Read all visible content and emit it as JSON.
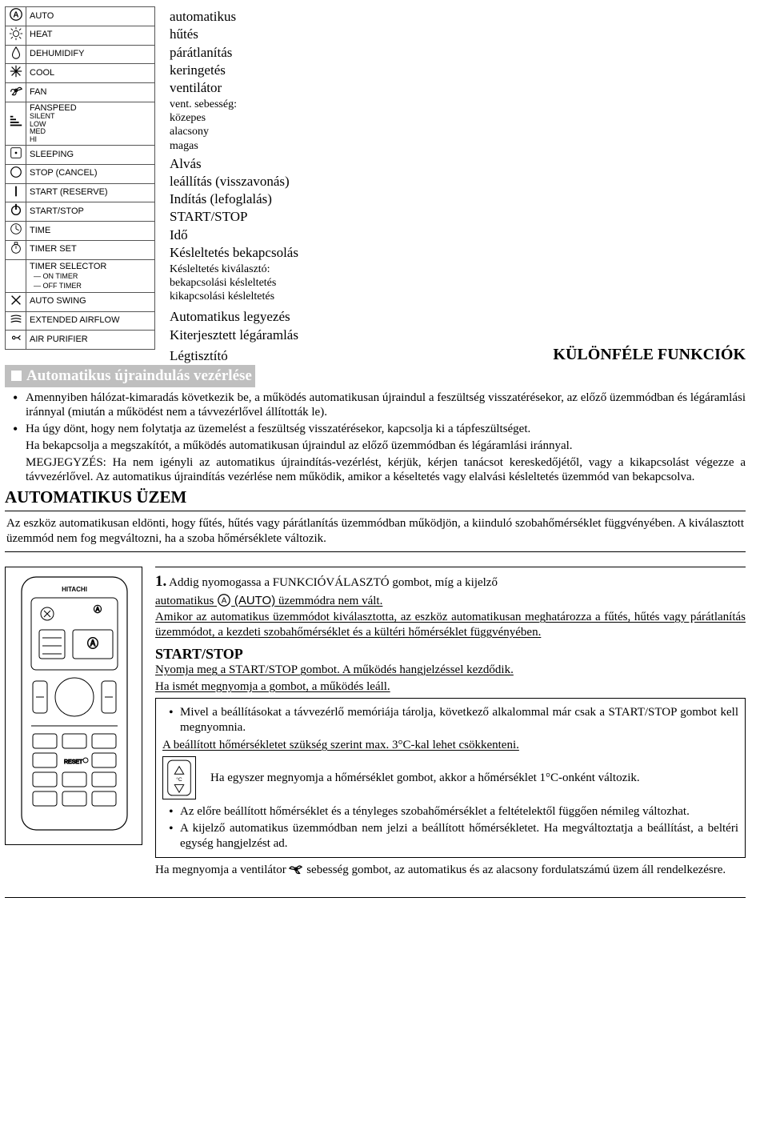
{
  "icon_table": {
    "rows": [
      {
        "label": "AUTO"
      },
      {
        "label": "HEAT"
      },
      {
        "label": "DEHUMIDIFY"
      },
      {
        "label": "COOL"
      },
      {
        "label": "FAN"
      },
      {
        "label": "FANSPEED",
        "subs": [
          "SILENT",
          "LOW",
          "MED",
          "HI"
        ]
      },
      {
        "label": "SLEEPING"
      },
      {
        "label": "STOP (CANCEL)"
      },
      {
        "label": "START (RESERVE)"
      },
      {
        "label": "START/STOP"
      },
      {
        "label": "TIME"
      },
      {
        "label": "TIMER SET"
      },
      {
        "label": "TIMER SELECTOR",
        "subs": [
          "ON TIMER",
          "OFF TIMER"
        ],
        "preDash": true
      },
      {
        "label": "AUTO SWING"
      },
      {
        "label": "EXTENDED AIRFLOW"
      },
      {
        "label": "AIR PURIFIER"
      }
    ]
  },
  "middle": {
    "l1": "automatikus",
    "l2": "hűtés",
    "l3": "párátlanítás",
    "l4": "keringetés",
    "l5": "ventilátor",
    "s1": "vent. sebesség:",
    "s2": "közepes",
    "s3": "alacsony",
    "s4": "magas",
    "l6": "Alvás",
    "l7": "leállítás (visszavonás)",
    "l8": "Indítás (lefoglalás)",
    "l9": "START/STOP",
    "l10": "Idő",
    "l11": "Késleltetés bekapcsolás",
    "s5": "Késleltetés kiválasztó:",
    "s6": "bekapcsolási késleltetés",
    "s7": "kikapcsolási késleltetés",
    "l12": "Automatikus legyezés",
    "l13": "Kiterjesztett légáramlás",
    "l14": "Légtisztító"
  },
  "section": {
    "funk_title": "KÜLÖNFÉLE FUNKCIÓK",
    "grey1": "Automatikus újraindulás vezérlése",
    "bullets": [
      "Amennyiben hálózat-kimaradás következik be, a működés automatikusan újraindul a feszültség visszatérésekor, az előző üzemmódban és légáramlási iránnyal (miután a működést nem a távvezérlővel állították le).",
      "Ha úgy dönt, hogy nem folytatja az üzemelést a feszültség visszatérésekor, kapcsolja ki a tápfeszültséget."
    ],
    "extra1": "Ha bekapcsolja a megszakítót, a működés automatikusan újraindul az előző üzemmódban és légáramlási iránnyal.",
    "extra2": "MEGJEGYZÉS: Ha nem igényli az automatikus újraindítás-vezérlést, kérjük, kérjen tanácsot kereskedőjétől, vagy a kikapcsolást végezze a távvezérlővel. Az automatikus újraindítás vezérlése nem működik, amikor a késeltetés vagy elalvási késleltetés üzemmód van bekapcsolva.",
    "h2": "AUTOMATIKUS ÜZEM",
    "ruled": "Az eszköz automatikusan eldönti, hogy fűtés, hűtés vagy párátlanítás üzemmódban működjön, a kiinduló szobahőmérséklet függvényében. A kiválasztott üzemmód nem fog megváltozni, ha a szoba hőmérséklete változik."
  },
  "lower": {
    "lead_num": "1.",
    "lead_a": " Addig nyomogassa a FUNKCIÓVÁLASZTÓ gombot, míg a kijelző",
    "lead_b1": "automatikus",
    "lead_b2": "(AUTO)",
    "lead_b3": " üzemmódra nem vált.",
    "p1": "Amikor az automatikus üzemmódot kiválasztotta, az eszköz automatikusan meghatározza a fűtés, hűtés vagy párátlanítás üzemmódot, a kezdeti szobahőmérséklet és a kültéri hőmérséklet függvényében.",
    "h3": "START/STOP",
    "p2": "Nyomja meg a START/STOP gombot. A működés hangjelzéssel kezdődik.",
    "p3": "Ha ismét megnyomja a gombot, a működés leáll.",
    "box_b1": "Mivel a beállításokat a távvezérlő memóriája tárolja, következő alkalommal már csak a START/STOP gombot kell megnyomnia.",
    "box_line": "A beállított hőmérsékletet szükség szerint max. 3°C-kal lehet csökkenteni.",
    "box_temp_text": "Ha egyszer megnyomja a hőmérséklet gombot, akkor a hőmérséklet 1°C-onként változik.",
    "box_b2": "Az előre beállított hőmérséklet és a tényleges szobahőmérséklet a feltételektől függően némileg változhat.",
    "box_b3": "A kijelző automatikus üzemmódban nem jelzi a beállított hőmérsékletet. Ha megváltoztatja a beállítást, a beltéri egység hangjelzést ad.",
    "final_a": "Ha megnyomja a ventilátor ",
    "final_b": " sebesség gombot, az automatikus és az alacsony fordulatszámú üzem áll rendelkezésre."
  }
}
